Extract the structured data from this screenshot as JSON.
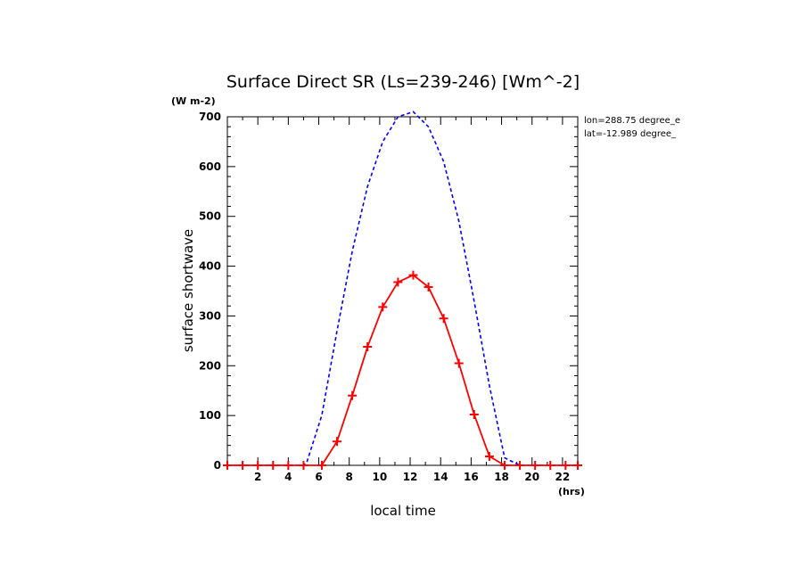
{
  "chart_data": {
    "type": "line",
    "title": "Surface Direct SR (Ls=239-246) [Wm^-2]",
    "y_unit": "(W m-2)",
    "x_unit": "(hrs)",
    "xlabel": "local time",
    "ylabel": "surface shortwave",
    "xlim": [
      0,
      23
    ],
    "ylim": [
      0,
      700
    ],
    "x_ticks": [
      2,
      4,
      6,
      8,
      10,
      12,
      14,
      16,
      18,
      20,
      22
    ],
    "y_ticks": [
      0,
      100,
      200,
      300,
      400,
      500,
      600,
      700
    ],
    "annotations": [
      "lon=288.75 degree_e",
      "lat=-12.989 degree_"
    ],
    "grid": false,
    "series": [
      {
        "color": "#0000ff",
        "line_style": "dashed",
        "marker": "none",
        "x": [
          0,
          1,
          2,
          3,
          4,
          5,
          5.2,
          6.2,
          7.2,
          8.2,
          9.2,
          10.2,
          11.2,
          12.2,
          13.2,
          14.2,
          15.2,
          16.2,
          17.2,
          18.2,
          19.2,
          20.2,
          21.2,
          22.2,
          23
        ],
        "y": [
          0,
          0,
          0,
          0,
          0,
          0,
          5,
          100,
          270,
          430,
          560,
          650,
          700,
          710,
          680,
          610,
          490,
          330,
          160,
          15,
          0,
          0,
          0,
          0,
          0
        ]
      },
      {
        "color": "#ff0000",
        "line_style": "solid",
        "marker": "plus",
        "x": [
          0,
          1,
          2,
          3,
          4,
          5,
          6.2,
          7.2,
          8.2,
          9.2,
          10.2,
          11.2,
          12.2,
          13.2,
          14.2,
          15.2,
          16.2,
          17.2,
          18.2,
          19.2,
          20.2,
          21.2,
          22.2,
          23
        ],
        "y": [
          0,
          0,
          0,
          0,
          0,
          0,
          0,
          48,
          140,
          238,
          318,
          368,
          382,
          358,
          295,
          205,
          102,
          18,
          0,
          0,
          0,
          0,
          0,
          0
        ]
      }
    ]
  }
}
